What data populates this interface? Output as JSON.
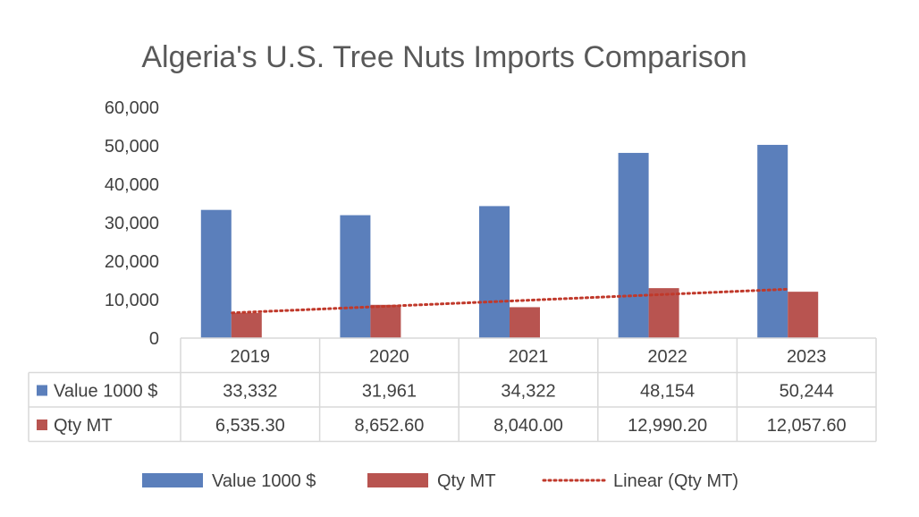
{
  "chart_data": {
    "type": "bar",
    "title": "Algeria's U.S. Tree Nuts Imports Comparison",
    "categories": [
      "2019",
      "2020",
      "2021",
      "2022",
      "2023"
    ],
    "ylim": [
      0,
      60000
    ],
    "yticks": [
      0,
      10000,
      20000,
      30000,
      40000,
      50000,
      60000
    ],
    "ytick_labels": [
      "0",
      "10,000",
      "20,000",
      "30,000",
      "40,000",
      "50,000",
      "60,000"
    ],
    "grid": false,
    "legend_position": "bottom",
    "series": [
      {
        "name": "Value 1000 $",
        "color": "#5b7fbb",
        "values": [
          33332,
          31961,
          34322,
          48154,
          50244
        ],
        "table_labels": [
          "33,332",
          "31,961",
          "34,322",
          "48,154",
          "50,244"
        ]
      },
      {
        "name": "Qty MT",
        "color": "#b85450",
        "values": [
          6535.3,
          8652.6,
          8040.0,
          12990.2,
          12057.6
        ],
        "table_labels": [
          "6,535.30",
          "8,652.60",
          "8,040.00",
          "12,990.20",
          "12,057.60"
        ]
      }
    ],
    "trendline": {
      "name": "Linear (Qty MT)",
      "series": "Qty MT",
      "type": "linear",
      "color": "#c0392b",
      "style": "dotted"
    },
    "data_table": true
  }
}
